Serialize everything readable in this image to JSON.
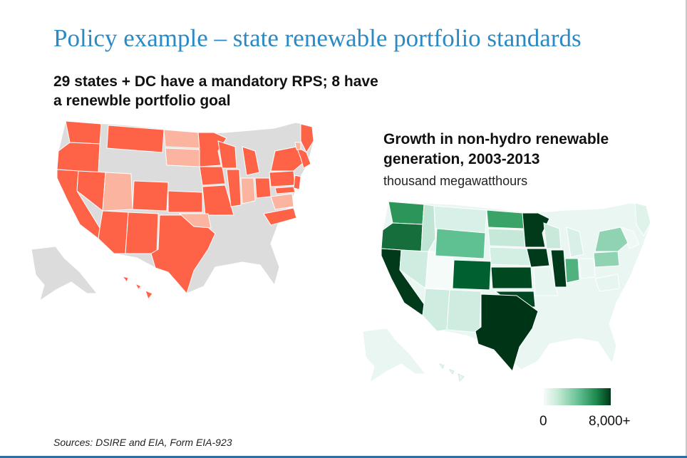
{
  "slide": {
    "title": "Policy example – state renewable portfolio standards",
    "left_heading": "29 states + DC have a mandatory RPS; 8 have a renewble portfolio goal",
    "right_heading": "Growth in non-hydro renewable generation, 2003-2013",
    "right_units": "thousand megawatthours",
    "legend": {
      "min_label": "0",
      "max_label": "8,000+"
    },
    "sources": "Sources: DSIRE and EIA, Form EIA-923"
  },
  "colors": {
    "title": "#2a8ac6",
    "rps_mandatory": "#ff6347",
    "rps_goal": "#fbb4a0",
    "rps_none": "#dcdcdc",
    "growth_low": "#e6f5ef",
    "growth_high": "#00391a"
  }
}
